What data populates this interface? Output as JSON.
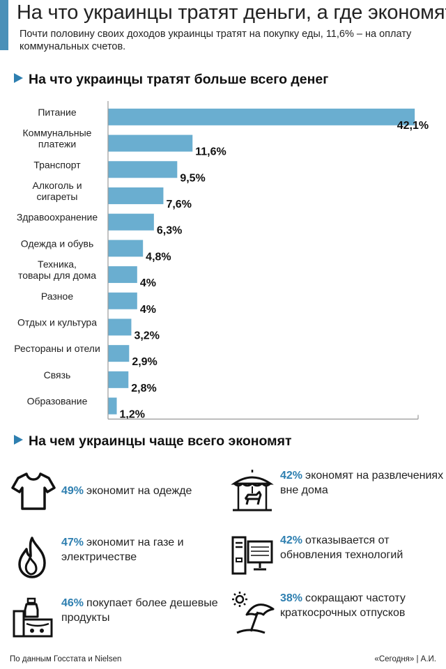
{
  "header": {
    "title": "На что украинцы тратят деньги, а где экономят",
    "subtitle": "Почти половину своих доходов украинцы  тратят на покупку еды, 11,6% – на оплату коммунальных счетов."
  },
  "sections": {
    "spending_title": "На что украинцы тратят больше всего денег",
    "saving_title": "На чем украинцы чаще всего экономят"
  },
  "chart_data": {
    "type": "bar",
    "orientation": "horizontal",
    "categories": [
      [
        "Питание"
      ],
      [
        "Коммунальные",
        "платежи"
      ],
      [
        "Транспорт"
      ],
      [
        "Алкоголь и",
        "сигареты"
      ],
      [
        "Здравоохранение"
      ],
      [
        "Одежда и обувь"
      ],
      [
        "Техника,",
        "товары для дома"
      ],
      [
        "Разное"
      ],
      [
        "Отдых и культура"
      ],
      [
        "Рестораны и отели"
      ],
      [
        "Связь"
      ],
      [
        "Образование"
      ]
    ],
    "values": [
      42.1,
      11.6,
      9.5,
      7.6,
      6.3,
      4.8,
      4,
      4,
      3.2,
      2.9,
      2.8,
      1.2
    ],
    "value_labels": [
      "42,1%",
      "11,6%",
      "9,5%",
      "7,6%",
      "6,3%",
      "4,8%",
      "4%",
      "4%",
      "3,2%",
      "2,9%",
      "2,8%",
      "1,2%"
    ],
    "unit": "%",
    "xlim": [
      0,
      44
    ],
    "bar_color": "#6aaed0",
    "axis_color": "#999999"
  },
  "savings": [
    {
      "icon": "tshirt-icon",
      "pct": "49%",
      "text": "экономит на одежде"
    },
    {
      "icon": "carousel-icon",
      "pct": "42%",
      "text": "экономят на развлечениях вне дома"
    },
    {
      "icon": "flame-icon",
      "pct": "47%",
      "text": "экономит на газе и электричестве"
    },
    {
      "icon": "computer-icon",
      "pct": "42%",
      "text": "отказывается от обновления технологий"
    },
    {
      "icon": "groceries-icon",
      "pct": "46%",
      "text": "покупает более дешевые продукты"
    },
    {
      "icon": "beach-umbrella-icon",
      "pct": "38%",
      "text": "сокращают частоту краткосрочных отпусков"
    }
  ],
  "footer": {
    "source": "По данным Госстата и Nielsen",
    "credit": "«Сегодня» | А.И."
  },
  "colors": {
    "accent": "#2e7fb0",
    "header_bar": "#4a90b8"
  }
}
